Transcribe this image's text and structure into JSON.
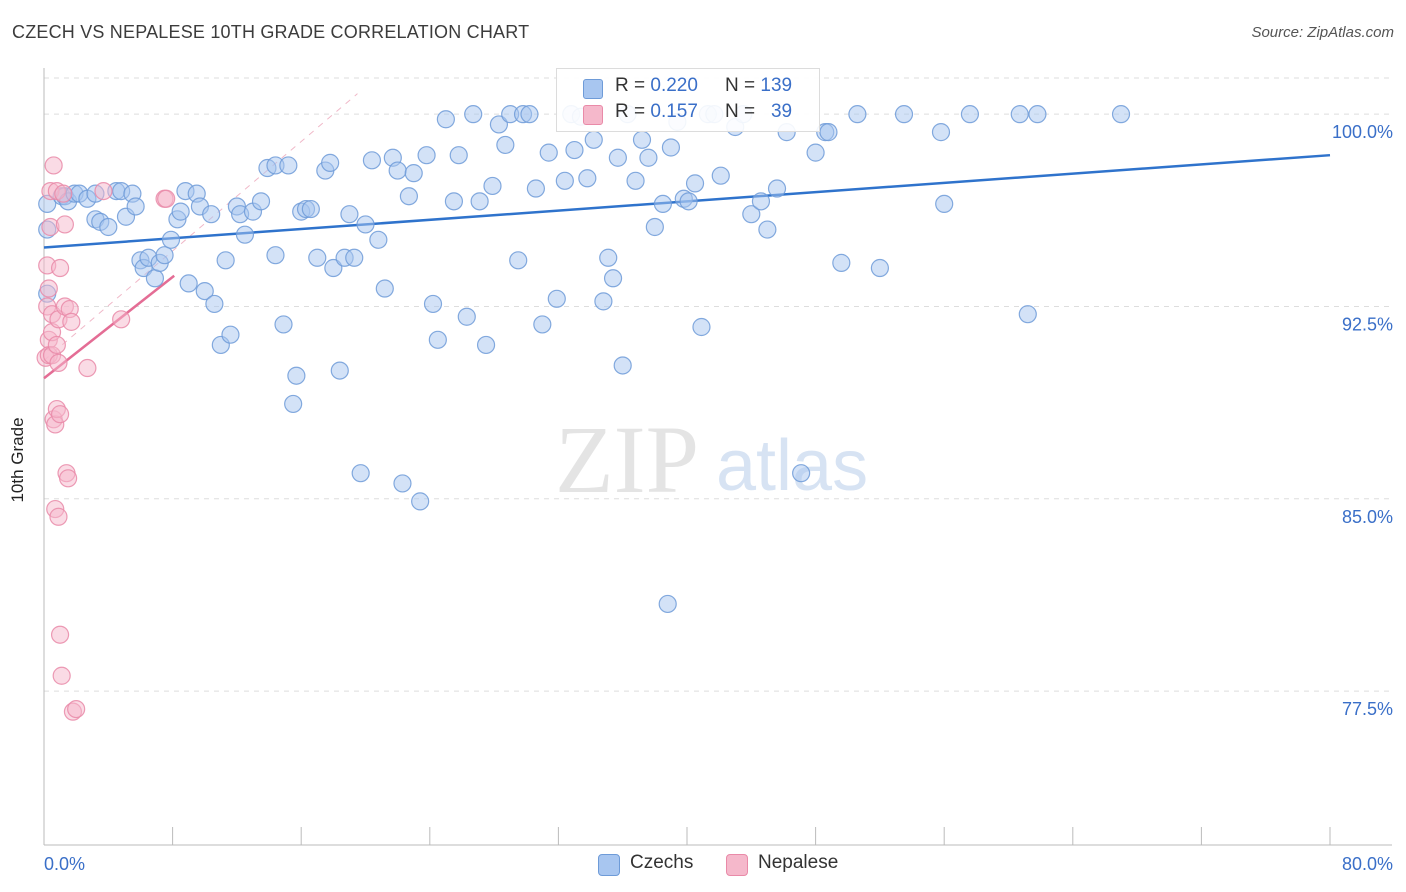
{
  "header": {
    "title": "CZECH VS NEPALESE 10TH GRADE CORRELATION CHART",
    "source": "Source: ZipAtlas.com"
  },
  "watermark": {
    "zip": "ZIP",
    "atlas": "atlas"
  },
  "legend": {
    "czech": {
      "r_label": "R = ",
      "r_value": "0.220",
      "n_label": "N = ",
      "n_value": "139",
      "color": "#a8c6f0"
    },
    "nepalese": {
      "r_label": "R = ",
      "r_value": "0.157",
      "n_label": "N = ",
      "n_value": "39",
      "color": "#f5b8cb"
    }
  },
  "bottom_legend": {
    "czechs": "Czechs",
    "nepalese": "Nepalese"
  },
  "colors": {
    "czech_fill": "#a8c6f0",
    "czech_stroke": "#6e9bd8",
    "czech_line": "#2f73cc",
    "nepal_fill": "#f5b8cb",
    "nepal_stroke": "#e98aa8",
    "nepal_line": "#e46d95",
    "axis_text": "#3a6fc8",
    "grid": "#dddddd"
  },
  "chart_data": {
    "type": "scatter",
    "title": "CZECH VS NEPALESE 10TH GRADE CORRELATION CHART",
    "xlabel": "",
    "ylabel": "10th Grade",
    "xlim": [
      0,
      80
    ],
    "ylim": [
      71.5,
      101.8
    ],
    "x_tick_labels": [
      "0.0%",
      "80.0%"
    ],
    "y_ticks": [
      77.5,
      85.0,
      92.5,
      100.0
    ],
    "y_tick_labels": [
      "77.5%",
      "85.0%",
      "92.5%",
      "100.0%"
    ],
    "grid": true,
    "series": [
      {
        "name": "Czechs",
        "R": 0.22,
        "N": 139,
        "trend": [
          [
            0,
            94.8
          ],
          [
            80,
            98.4
          ]
        ],
        "points": [
          [
            0.2,
            96.5
          ],
          [
            0.2,
            95.5
          ],
          [
            0.2,
            93.0
          ],
          [
            1.1,
            96.8
          ],
          [
            1.3,
            96.8
          ],
          [
            1.5,
            96.6
          ],
          [
            1.9,
            96.9
          ],
          [
            2.2,
            96.9
          ],
          [
            2.7,
            96.7
          ],
          [
            3.2,
            96.9
          ],
          [
            3.2,
            95.9
          ],
          [
            3.5,
            95.8
          ],
          [
            4.0,
            95.6
          ],
          [
            4.5,
            97.0
          ],
          [
            4.8,
            97.0
          ],
          [
            5.1,
            96.0
          ],
          [
            5.5,
            96.9
          ],
          [
            5.7,
            96.4
          ],
          [
            6.0,
            94.3
          ],
          [
            6.2,
            94.0
          ],
          [
            6.5,
            94.4
          ],
          [
            6.9,
            93.6
          ],
          [
            7.2,
            94.2
          ],
          [
            7.5,
            94.5
          ],
          [
            7.9,
            95.1
          ],
          [
            8.3,
            95.9
          ],
          [
            8.5,
            96.2
          ],
          [
            8.8,
            97.0
          ],
          [
            9.0,
            93.4
          ],
          [
            9.5,
            96.9
          ],
          [
            9.7,
            96.4
          ],
          [
            10.0,
            93.1
          ],
          [
            10.4,
            96.1
          ],
          [
            10.6,
            92.6
          ],
          [
            11.0,
            91.0
          ],
          [
            11.3,
            94.3
          ],
          [
            11.6,
            91.4
          ],
          [
            12.0,
            96.4
          ],
          [
            12.2,
            96.1
          ],
          [
            12.5,
            95.3
          ],
          [
            13.0,
            96.2
          ],
          [
            13.5,
            96.6
          ],
          [
            13.9,
            97.9
          ],
          [
            14.4,
            98.0
          ],
          [
            14.4,
            94.5
          ],
          [
            14.9,
            91.8
          ],
          [
            15.2,
            98.0
          ],
          [
            15.5,
            88.7
          ],
          [
            15.7,
            89.8
          ],
          [
            16.0,
            96.2
          ],
          [
            16.3,
            96.3
          ],
          [
            16.6,
            96.3
          ],
          [
            17.0,
            94.4
          ],
          [
            17.5,
            97.8
          ],
          [
            17.8,
            98.1
          ],
          [
            18.0,
            94.0
          ],
          [
            18.4,
            90.0
          ],
          [
            18.7,
            94.4
          ],
          [
            19.0,
            96.1
          ],
          [
            19.3,
            94.4
          ],
          [
            19.7,
            86.0
          ],
          [
            20.0,
            95.7
          ],
          [
            20.4,
            98.2
          ],
          [
            20.8,
            95.1
          ],
          [
            21.2,
            93.2
          ],
          [
            21.7,
            98.3
          ],
          [
            22.0,
            97.8
          ],
          [
            22.3,
            85.6
          ],
          [
            22.7,
            96.8
          ],
          [
            23.0,
            97.7
          ],
          [
            23.4,
            84.9
          ],
          [
            23.8,
            98.4
          ],
          [
            24.2,
            92.6
          ],
          [
            24.5,
            91.2
          ],
          [
            25.0,
            99.8
          ],
          [
            25.5,
            96.6
          ],
          [
            25.8,
            98.4
          ],
          [
            26.3,
            92.1
          ],
          [
            26.7,
            100.0
          ],
          [
            27.1,
            96.6
          ],
          [
            27.5,
            91.0
          ],
          [
            27.9,
            97.2
          ],
          [
            28.3,
            99.6
          ],
          [
            28.7,
            98.8
          ],
          [
            29.0,
            100.0
          ],
          [
            29.5,
            94.3
          ],
          [
            29.8,
            100.0
          ],
          [
            30.2,
            100.0
          ],
          [
            30.6,
            97.1
          ],
          [
            31.0,
            91.8
          ],
          [
            31.4,
            98.5
          ],
          [
            31.9,
            92.8
          ],
          [
            32.4,
            97.4
          ],
          [
            32.8,
            100.0
          ],
          [
            33.0,
            98.6
          ],
          [
            33.4,
            99.9
          ],
          [
            33.8,
            97.5
          ],
          [
            34.2,
            99.0
          ],
          [
            34.8,
            92.7
          ],
          [
            35.1,
            94.4
          ],
          [
            35.4,
            93.6
          ],
          [
            35.7,
            98.3
          ],
          [
            36.0,
            90.2
          ],
          [
            36.3,
            100.0
          ],
          [
            36.8,
            97.4
          ],
          [
            37.2,
            99.0
          ],
          [
            37.6,
            98.3
          ],
          [
            38.0,
            95.6
          ],
          [
            38.5,
            96.5
          ],
          [
            38.8,
            80.9
          ],
          [
            39.0,
            98.7
          ],
          [
            39.4,
            99.7
          ],
          [
            39.8,
            96.7
          ],
          [
            40.1,
            96.6
          ],
          [
            40.5,
            97.3
          ],
          [
            40.9,
            91.7
          ],
          [
            41.3,
            100.0
          ],
          [
            41.7,
            100.0
          ],
          [
            42.1,
            97.6
          ],
          [
            43.0,
            99.5
          ],
          [
            43.5,
            100.0
          ],
          [
            44.0,
            96.1
          ],
          [
            44.6,
            96.6
          ],
          [
            45.0,
            95.5
          ],
          [
            45.6,
            97.1
          ],
          [
            46.2,
            99.3
          ],
          [
            47.1,
            86.0
          ],
          [
            48.0,
            98.5
          ],
          [
            48.6,
            99.3
          ],
          [
            48.8,
            99.3
          ],
          [
            49.6,
            94.2
          ],
          [
            50.6,
            100.0
          ],
          [
            52.0,
            94.0
          ],
          [
            53.5,
            100.0
          ],
          [
            55.8,
            99.3
          ],
          [
            56.0,
            96.5
          ],
          [
            57.6,
            100.0
          ],
          [
            60.7,
            100.0
          ],
          [
            61.2,
            92.2
          ],
          [
            61.8,
            100.0
          ],
          [
            67.0,
            100.0
          ]
        ]
      },
      {
        "name": "Nepalese",
        "R": 0.157,
        "N": 39,
        "trend": [
          [
            0,
            89.7
          ],
          [
            8.1,
            93.7
          ]
        ],
        "points": [
          [
            0.1,
            90.5
          ],
          [
            0.2,
            92.5
          ],
          [
            0.2,
            94.1
          ],
          [
            0.3,
            93.2
          ],
          [
            0.3,
            91.2
          ],
          [
            0.3,
            90.6
          ],
          [
            0.4,
            97.0
          ],
          [
            0.4,
            95.6
          ],
          [
            0.5,
            92.2
          ],
          [
            0.5,
            91.5
          ],
          [
            0.5,
            90.6
          ],
          [
            0.6,
            98.0
          ],
          [
            0.6,
            88.1
          ],
          [
            0.7,
            87.9
          ],
          [
            0.7,
            84.6
          ],
          [
            0.8,
            97.0
          ],
          [
            0.8,
            91.0
          ],
          [
            0.8,
            88.5
          ],
          [
            0.9,
            92.0
          ],
          [
            0.9,
            90.3
          ],
          [
            0.9,
            84.3
          ],
          [
            1.0,
            94.0
          ],
          [
            1.0,
            88.3
          ],
          [
            1.0,
            79.7
          ],
          [
            1.1,
            78.1
          ],
          [
            1.2,
            96.9
          ],
          [
            1.3,
            95.7
          ],
          [
            1.3,
            92.5
          ],
          [
            1.4,
            86.0
          ],
          [
            1.5,
            85.8
          ],
          [
            1.6,
            92.4
          ],
          [
            1.7,
            91.9
          ],
          [
            1.8,
            76.7
          ],
          [
            2.0,
            76.8
          ],
          [
            2.7,
            90.1
          ],
          [
            3.7,
            97.0
          ],
          [
            4.8,
            92.0
          ],
          [
            7.5,
            96.7
          ],
          [
            7.6,
            96.7
          ]
        ]
      }
    ]
  }
}
